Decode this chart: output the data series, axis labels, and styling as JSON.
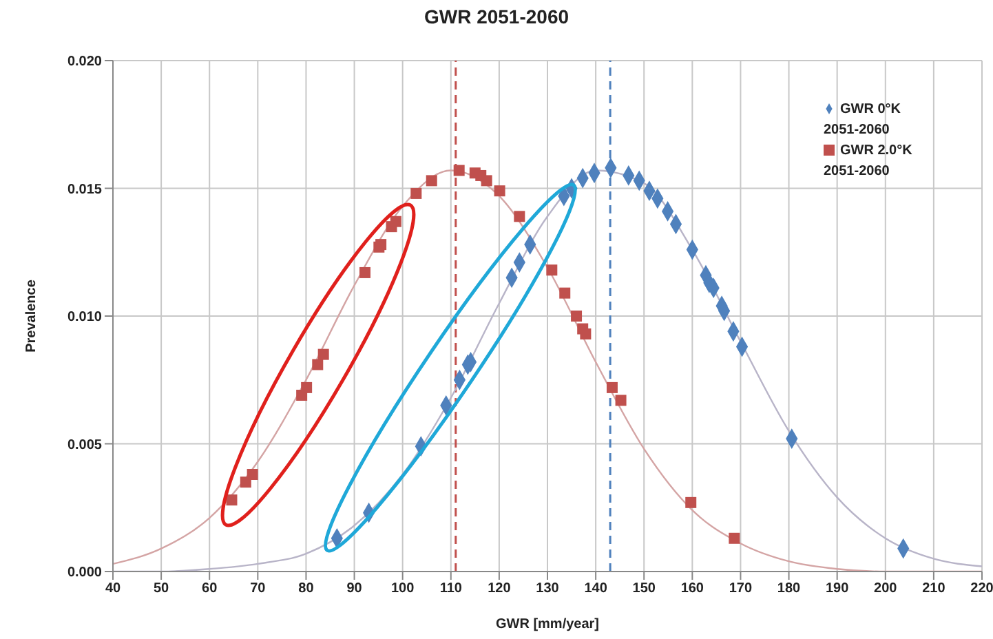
{
  "chart_data": {
    "type": "scatter",
    "title": "GWR 2051-2060",
    "xlabel": "GWR [mm/year]",
    "ylabel": "Prevalence",
    "xlim": [
      40,
      220
    ],
    "xticks": [
      40,
      50,
      60,
      70,
      80,
      90,
      100,
      110,
      120,
      130,
      140,
      150,
      160,
      170,
      180,
      190,
      200,
      210,
      220
    ],
    "ylim": [
      0,
      0.02
    ],
    "yticks": [
      {
        "value": 0,
        "label": "0.000"
      },
      {
        "value": 0.005,
        "label": "0.005"
      },
      {
        "value": 0.01,
        "label": "0.010"
      },
      {
        "value": 0.015,
        "label": "0.015"
      },
      {
        "value": 0.02,
        "label": "0.020"
      }
    ],
    "grid": true,
    "legend": "top right",
    "series": [
      {
        "name": "GWR 0°K 2051-2060",
        "marker": "diamond",
        "color": "#4f81bd",
        "x": [
          86.4,
          93.0,
          103.8,
          109.0,
          111.8,
          113.5,
          114.1,
          122.6,
          124.2,
          126.4,
          133.4,
          135.0,
          137.3,
          139.7,
          143.1,
          146.8,
          149.0,
          151.1,
          152.8,
          154.9,
          156.6,
          160.0,
          162.8,
          163.5,
          164.4,
          166.1,
          166.6,
          168.5,
          170.3,
          180.6,
          203.7
        ],
        "values": [
          0.0013,
          0.0023,
          0.0049,
          0.0065,
          0.0075,
          0.0081,
          0.0082,
          0.0115,
          0.0121,
          0.0128,
          0.0147,
          0.015,
          0.0154,
          0.0156,
          0.0158,
          0.0155,
          0.0153,
          0.0149,
          0.0146,
          0.0141,
          0.0136,
          0.0126,
          0.0116,
          0.0113,
          0.0111,
          0.0104,
          0.0102,
          0.0094,
          0.0088,
          0.0052,
          0.0009
        ]
      },
      {
        "name": "GWR 2.0°K 2051-2060",
        "marker": "square",
        "color": "#c0504d",
        "x": [
          64.6,
          67.5,
          68.9,
          79.1,
          80.1,
          82.4,
          83.6,
          92.2,
          95.1,
          95.5,
          97.7,
          98.6,
          102.8,
          106.0,
          111.7,
          115.0,
          116.2,
          117.4,
          120.1,
          124.2,
          130.9,
          133.6,
          136.0,
          137.3,
          137.9,
          143.4,
          145.2,
          159.7,
          168.7
        ],
        "values": [
          0.0028,
          0.0035,
          0.0038,
          0.0069,
          0.0072,
          0.0081,
          0.0085,
          0.0117,
          0.0127,
          0.0128,
          0.0135,
          0.0137,
          0.0148,
          0.0153,
          0.0157,
          0.0156,
          0.0155,
          0.0153,
          0.0149,
          0.0139,
          0.0118,
          0.0109,
          0.01,
          0.0095,
          0.0093,
          0.0072,
          0.0067,
          0.0027,
          0.0013
        ]
      },
      {
        "type": "line",
        "color": "#b8b4c8",
        "marker": "none",
        "line_style": "solid",
        "x": [
          40,
          50,
          60,
          70,
          80,
          90,
          100,
          110,
          120,
          130,
          140,
          150,
          160,
          170,
          180,
          190,
          200,
          210,
          220
        ],
        "values": [
          0,
          0,
          0.0001,
          0.0003,
          0.0007,
          0.0018,
          0.0038,
          0.0068,
          0.0105,
          0.0139,
          0.0157,
          0.0152,
          0.0126,
          0.009,
          0.0055,
          0.0029,
          0.0013,
          0.0005,
          0.0002
        ]
      },
      {
        "type": "line",
        "color": "#d4a4a4",
        "marker": "none",
        "line_style": "solid",
        "x": [
          40,
          50,
          60,
          70,
          80,
          90,
          100,
          110,
          120,
          130,
          140,
          150,
          160,
          170,
          180,
          190,
          200,
          210,
          220
        ],
        "values": [
          0.0003,
          0.0009,
          0.0021,
          0.0043,
          0.0075,
          0.0112,
          0.0143,
          0.0157,
          0.0147,
          0.0119,
          0.0082,
          0.0048,
          0.0024,
          0.0011,
          0.0004,
          0.0001,
          0,
          0,
          0
        ]
      }
    ],
    "ref_lines": [
      {
        "axis": "x",
        "value": 111,
        "color": "#c0504d",
        "line_style": "dashed"
      },
      {
        "axis": "x",
        "value": 143,
        "color": "#4f81bd",
        "line_style": "dashed"
      }
    ]
  }
}
